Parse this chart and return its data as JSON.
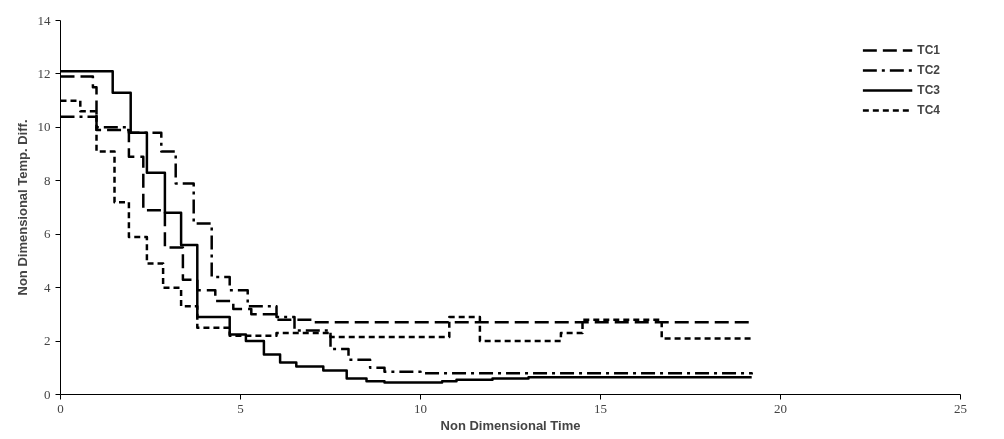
{
  "chart_data": {
    "type": "step",
    "xlabel": "Non Dimensional Time",
    "ylabel": "Non Dimensional Temp. Diff.",
    "xlim": [
      0,
      25
    ],
    "xticks": [
      0,
      5,
      10,
      15,
      20,
      25
    ],
    "ylim": [
      0,
      14
    ],
    "yticks": [
      0,
      2,
      4,
      6,
      8,
      10,
      12,
      14
    ],
    "grid": false,
    "legend": "top right",
    "marker": "none",
    "series": [
      {
        "name": "TC1",
        "color": "#000000",
        "line_style": "longdash",
        "x": [
          0,
          0.9,
          1.0,
          1.9,
          2.3,
          2.9,
          3.4,
          3.8,
          4.3,
          4.8,
          5.3,
          6.0,
          7.0,
          19.2
        ],
        "values": [
          11.9,
          11.5,
          9.9,
          8.9,
          6.9,
          5.5,
          4.3,
          3.9,
          3.5,
          3.2,
          3.0,
          2.8,
          2.7,
          2.6
        ]
      },
      {
        "name": "TC2",
        "color": "#000000",
        "line_style": "dashdot",
        "x": [
          0,
          1.0,
          1.9,
          2.8,
          3.2,
          3.7,
          4.2,
          4.7,
          5.2,
          6.0,
          6.5,
          7.5,
          8.0,
          8.6,
          9.0,
          10.0,
          19.2
        ],
        "values": [
          10.4,
          10.0,
          9.8,
          9.1,
          7.9,
          6.4,
          4.4,
          3.9,
          3.3,
          2.9,
          2.4,
          1.7,
          1.3,
          1.0,
          0.85,
          0.8,
          0.75
        ]
      },
      {
        "name": "TC3",
        "color": "#000000",
        "line_style": "solid",
        "x": [
          0,
          1.45,
          1.95,
          2.4,
          2.9,
          3.35,
          3.8,
          4.7,
          5.15,
          5.65,
          6.1,
          6.55,
          7.3,
          7.95,
          8.5,
          9.0,
          10.6,
          11.0,
          12.0,
          13.0,
          19.2
        ],
        "values": [
          12.1,
          11.3,
          9.8,
          8.3,
          6.8,
          5.6,
          2.9,
          2.25,
          2.0,
          1.5,
          1.2,
          1.05,
          0.9,
          0.6,
          0.5,
          0.45,
          0.5,
          0.55,
          0.6,
          0.65,
          0.65
        ]
      },
      {
        "name": "TC4",
        "color": "#000000",
        "line_style": "dashed",
        "x": [
          0,
          0.55,
          1.0,
          1.5,
          1.9,
          2.4,
          2.85,
          3.35,
          3.8,
          4.7,
          6.0,
          7.5,
          10.8,
          11.65,
          13.9,
          14.5,
          16.7,
          19.2
        ],
        "values": [
          11.0,
          10.6,
          9.1,
          7.2,
          5.9,
          4.9,
          4.0,
          3.3,
          2.5,
          2.2,
          2.3,
          2.15,
          2.9,
          2.0,
          2.3,
          2.8,
          2.1,
          2.0
        ]
      }
    ]
  }
}
